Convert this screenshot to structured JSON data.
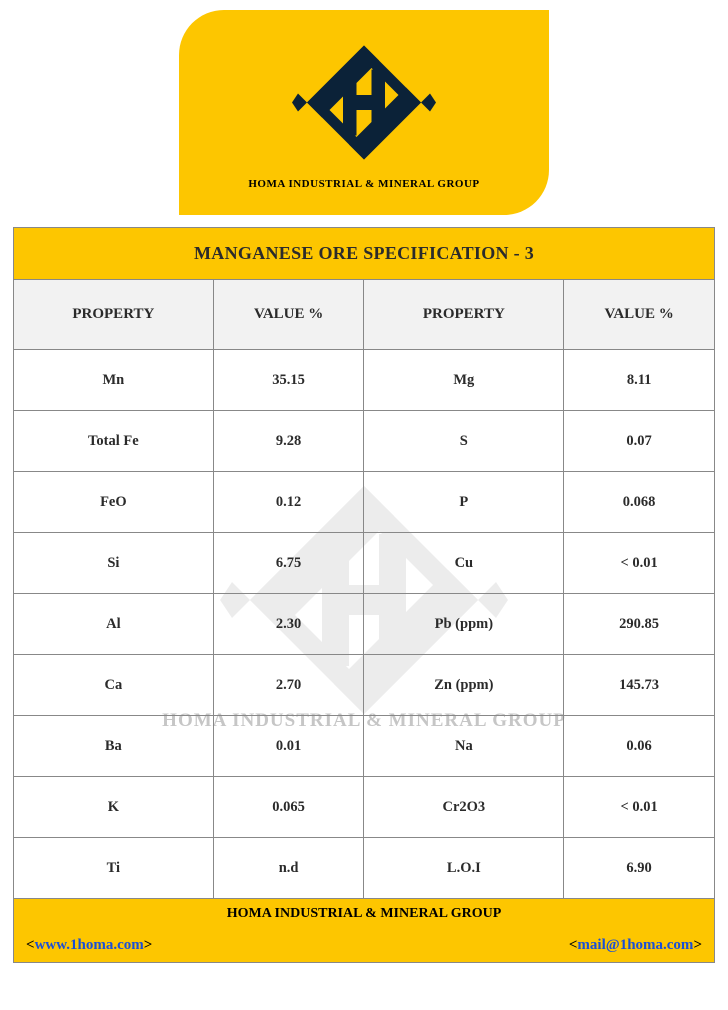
{
  "logo": {
    "caption": "HOMA INDUSTRIAL & MINERAL GROUP",
    "fill_color": "#0b2238",
    "bg_color": "#fdc600"
  },
  "table": {
    "title": "MANGANESE ORE SPECIFICATION - 3",
    "columns": [
      "PROPERTY",
      "VALUE %",
      "PROPERTY",
      "VALUE %"
    ],
    "rows": [
      {
        "p1": "Mn",
        "v1": "35.15",
        "p2": "Mg",
        "v2": "8.11"
      },
      {
        "p1": "Total Fe",
        "v1": "9.28",
        "p2": "S",
        "v2": "0.07"
      },
      {
        "p1": "FeO",
        "v1": "0.12",
        "p2": "P",
        "v2": "0.068"
      },
      {
        "p1": "Si",
        "v1": "6.75",
        "p2": "Cu",
        "v2": "< 0.01"
      },
      {
        "p1": "Al",
        "v1": "2.30",
        "p2": "Pb (ppm)",
        "v2": "290.85"
      },
      {
        "p1": "Ca",
        "v1": "2.70",
        "p2": "Zn (ppm)",
        "v2": "145.73"
      },
      {
        "p1": "Ba",
        "v1": "0.01",
        "p2": "Na",
        "v2": "0.06"
      },
      {
        "p1": "K",
        "v1": "0.065",
        "p2": "Cr2O3",
        "v2": "< 0.01"
      },
      {
        "p1": "Ti",
        "v1": "n.d",
        "p2": "L.O.I",
        "v2": "6.90"
      }
    ],
    "title_bg": "#fdc600",
    "header_bg": "#f2f2f2",
    "border_color": "#888888",
    "text_color": "#2b2b2b"
  },
  "footer": {
    "company": "HOMA INDUSTRIAL & MINERAL GROUP",
    "website": "www.1homa.com",
    "email": "mail@1homa.com",
    "bg_color": "#fdc600",
    "link_color": "#1a4fd6"
  },
  "watermark": {
    "text": "HOMA INDUSTRIAL & MINERAL GROUP",
    "color": "#c6c6c6",
    "opacity": 0.15
  }
}
